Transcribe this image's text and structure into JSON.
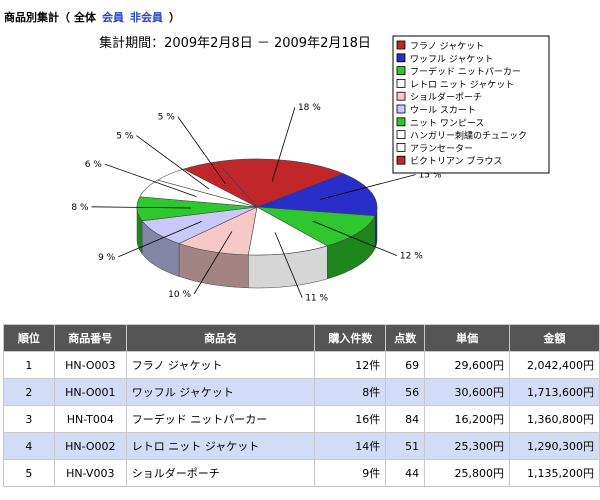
{
  "header": {
    "title": "商品別集計",
    "open_paren": "（",
    "scope_all": "全体",
    "scope_member": "会員",
    "scope_nonmember": "非会員",
    "close_paren": "）"
  },
  "chart_data": {
    "type": "pie",
    "title": "集計期間：2009年2月8日 － 2009年2月18日",
    "legend_position": "top-right",
    "slices": [
      {
        "name": "フラノ ジャケット",
        "value": 18,
        "label": "18 %",
        "color": "#c0262a"
      },
      {
        "name": "ワッフル ジャケット",
        "value": 15,
        "label": "15 %",
        "color": "#2a2ec8"
      },
      {
        "name": "フーデッド ニットパーカー",
        "value": 12,
        "label": "12 %",
        "color": "#2ec82e"
      },
      {
        "name": "レトロ ニット ジャケット",
        "value": 11,
        "label": "11 %",
        "color": "#ffffff"
      },
      {
        "name": "ショルダーポーチ",
        "value": 10,
        "label": "10 %",
        "color": "#f7c8c8"
      },
      {
        "name": "ウール スカート",
        "value": 9,
        "label": "9 %",
        "color": "#c8c8fa"
      },
      {
        "name": "ニット ワンピース",
        "value": 8,
        "label": "8 %",
        "color": "#2ec82e"
      },
      {
        "name": "ハンガリー刺繍のチュニック",
        "value": 6,
        "label": "6 %",
        "color": "#ffffff"
      },
      {
        "name": "アランセーター",
        "value": 5,
        "label": "5 %",
        "color": "#ffffff"
      },
      {
        "name": "ビクトリアン ブラウス",
        "value": 5,
        "label": "5 %",
        "color": "#c0262a"
      }
    ]
  },
  "table": {
    "headers": [
      "順位",
      "商品番号",
      "商品名",
      "購入件数",
      "点数",
      "単価",
      "金額"
    ],
    "rows": [
      [
        "1",
        "HN-O003",
        "フラノ ジャケット",
        "12件",
        "69",
        "29,600円",
        "2,042,400円"
      ],
      [
        "2",
        "HN-O001",
        "ワッフル ジャケット",
        "8件",
        "56",
        "30,600円",
        "1,713,600円"
      ],
      [
        "3",
        "HN-T004",
        "フーデッド ニットパーカー",
        "16件",
        "84",
        "16,200円",
        "1,360,800円"
      ],
      [
        "4",
        "HN-O002",
        "レトロ ニット ジャケット",
        "14件",
        "51",
        "25,300円",
        "1,290,300円"
      ],
      [
        "5",
        "HN-V003",
        "ショルダーポーチ",
        "9件",
        "44",
        "25,800円",
        "1,135,200円"
      ]
    ]
  }
}
